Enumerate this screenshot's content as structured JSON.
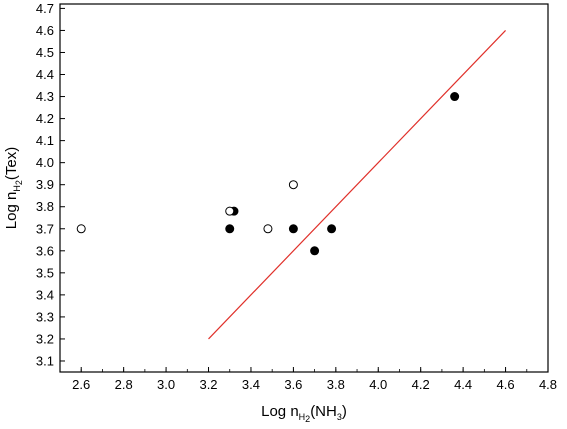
{
  "chart_data": {
    "type": "scatter",
    "title": "",
    "xlabel": {
      "prefix": "Log n",
      "sub": "H",
      "sub2": "2",
      "suffix_open": "(NH",
      "suffix_sub": "3",
      "suffix_close": ")"
    },
    "ylabel": {
      "prefix": "Log n",
      "sub": "H",
      "sub2": "2",
      "suffix": "(Tex)"
    },
    "xlim": [
      2.5,
      4.8
    ],
    "ylim": [
      3.05,
      4.72
    ],
    "x_ticks": [
      "2.6",
      "2.8",
      "3.0",
      "3.2",
      "3.4",
      "3.6",
      "3.8",
      "4.0",
      "4.2",
      "4.4",
      "4.6",
      "4.8"
    ],
    "y_ticks": [
      "3.1",
      "3.2",
      "3.3",
      "3.4",
      "3.5",
      "3.6",
      "3.7",
      "3.8",
      "3.9",
      "4.0",
      "4.1",
      "4.2",
      "4.3",
      "4.4",
      "4.5",
      "4.6",
      "4.7"
    ],
    "grid": false,
    "series": [
      {
        "marker": "filled-circle",
        "color": "#000000",
        "points": [
          [
            3.3,
            3.7
          ],
          [
            3.32,
            3.78
          ],
          [
            3.6,
            3.7
          ],
          [
            3.7,
            3.6
          ],
          [
            3.78,
            3.7
          ],
          [
            4.36,
            4.3
          ]
        ]
      },
      {
        "marker": "open-circle",
        "color": "#000000",
        "points": [
          [
            2.6,
            3.7
          ],
          [
            3.3,
            3.78
          ],
          [
            3.48,
            3.7
          ],
          [
            3.6,
            3.9
          ]
        ]
      }
    ],
    "line": {
      "color": "#e0302a",
      "points": [
        [
          3.2,
          3.2
        ],
        [
          4.6,
          4.6
        ]
      ]
    }
  }
}
